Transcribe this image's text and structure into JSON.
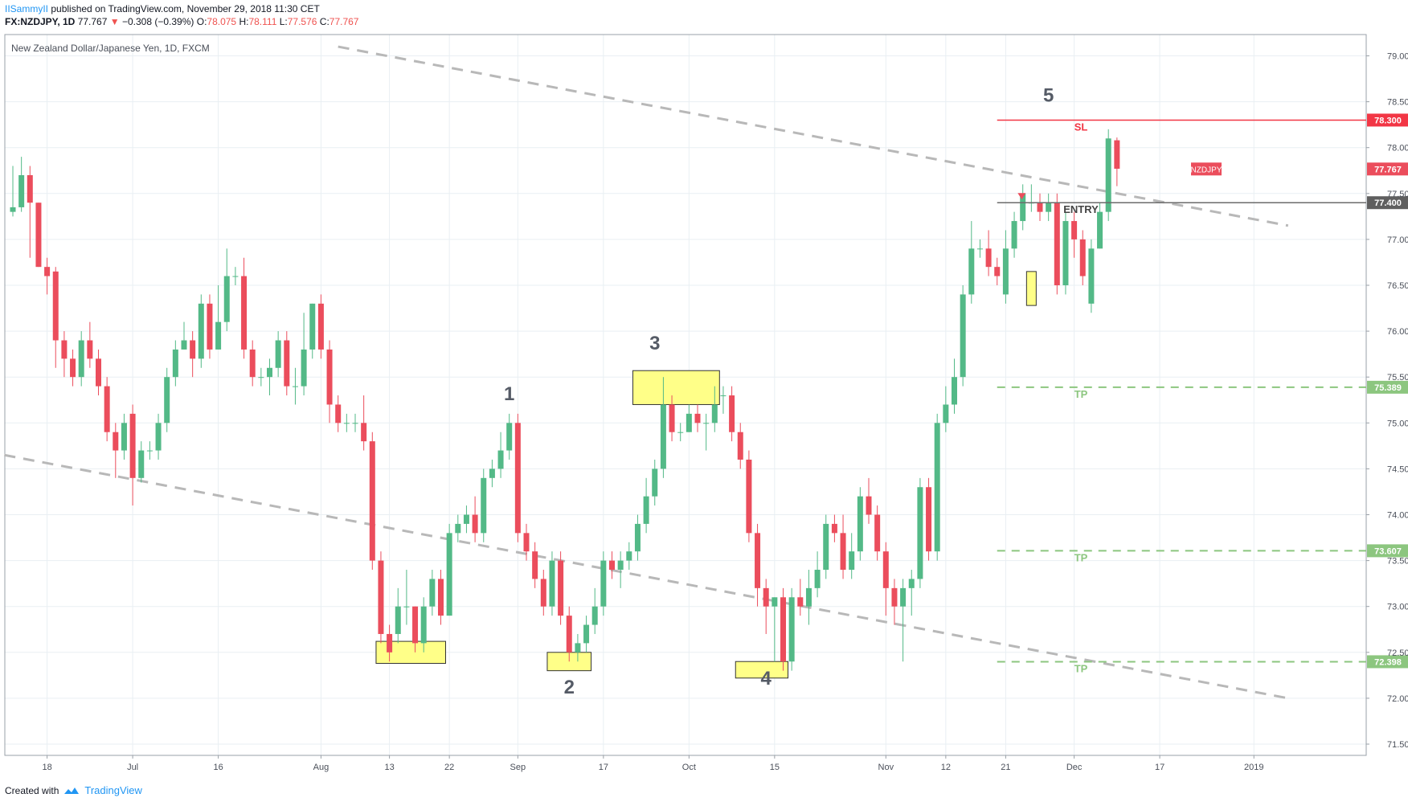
{
  "header": {
    "user": "IISammyII",
    "published": "published on TradingView.com, November 29, 2018 11:30 CET",
    "symbol": "FX:NZDJPY, 1D",
    "last": "77.767",
    "change": "−0.308 (−0.39%)",
    "o_label": "O:",
    "open": "78.075",
    "h_label": "H:",
    "high": "78.111",
    "l_label": "L:",
    "low": "77.576",
    "c_label": "C:",
    "close": "77.767"
  },
  "footer": {
    "created": "Created with",
    "brand": "TradingView"
  },
  "colors": {
    "up": "#53b987",
    "down": "#eb4d5c",
    "grid": "#e9eff3",
    "sl": "#f23645",
    "entry": "#6b6b6b",
    "tp": "#8cc67f",
    "highlight": "#ffff88",
    "trend": "#b8b8b8"
  },
  "chart_data": {
    "type": "candlestick",
    "title": "New Zealand Dollar/Japanese Yen, 1D, FXCM",
    "ylim": [
      71.2,
      79.1
    ],
    "y_ticks": [
      "71.500",
      "72.000",
      "72.500",
      "73.000",
      "73.500",
      "74.000",
      "74.500",
      "75.000",
      "75.500",
      "76.000",
      "76.500",
      "77.000",
      "77.500",
      "78.000",
      "78.500",
      "79.000"
    ],
    "x_ticks": [
      {
        "label": "18",
        "i": 4
      },
      {
        "label": "Jul",
        "i": 14
      },
      {
        "label": "16",
        "i": 24
      },
      {
        "label": "Aug",
        "i": 36
      },
      {
        "label": "13",
        "i": 44
      },
      {
        "label": "22",
        "i": 51
      },
      {
        "label": "Sep",
        "i": 59
      },
      {
        "label": "17",
        "i": 69
      },
      {
        "label": "Oct",
        "i": 79
      },
      {
        "label": "15",
        "i": 89
      },
      {
        "label": "Nov",
        "i": 102
      },
      {
        "label": "12",
        "i": 109
      },
      {
        "label": "21",
        "i": 116
      },
      {
        "label": "Dec",
        "i": 124
      },
      {
        "label": "17",
        "i": 134
      },
      {
        "label": "2019",
        "i": 145
      }
    ],
    "candles": [
      [
        77.3,
        77.35,
        77.8,
        77.25
      ],
      [
        77.35,
        77.7,
        77.9,
        77.3
      ],
      [
        77.7,
        77.4,
        77.8,
        76.8
      ],
      [
        77.4,
        76.7,
        77.4,
        76.7
      ],
      [
        76.7,
        76.6,
        76.8,
        76.4
      ],
      [
        76.65,
        75.9,
        76.7,
        75.6
      ],
      [
        75.9,
        75.7,
        76.0,
        75.5
      ],
      [
        75.7,
        75.5,
        75.8,
        75.4
      ],
      [
        75.5,
        75.9,
        76.0,
        75.4
      ],
      [
        75.9,
        75.7,
        76.1,
        75.6
      ],
      [
        75.7,
        75.4,
        75.8,
        75.3
      ],
      [
        75.4,
        74.9,
        75.5,
        74.8
      ],
      [
        74.9,
        74.7,
        75.0,
        74.4
      ],
      [
        74.7,
        75.0,
        75.1,
        74.6
      ],
      [
        75.1,
        74.4,
        75.2,
        74.1
      ],
      [
        74.4,
        74.7,
        74.8,
        74.35
      ],
      [
        74.7,
        74.7,
        74.8,
        74.6
      ],
      [
        74.7,
        75.0,
        75.1,
        74.6
      ],
      [
        75.0,
        75.5,
        75.6,
        74.9
      ],
      [
        75.5,
        75.8,
        75.9,
        75.4
      ],
      [
        75.8,
        75.9,
        76.1,
        75.8
      ],
      [
        75.9,
        75.7,
        76.0,
        75.5
      ],
      [
        75.7,
        76.3,
        76.4,
        75.6
      ],
      [
        76.3,
        75.8,
        76.4,
        75.7
      ],
      [
        75.8,
        76.1,
        76.5,
        75.8
      ],
      [
        76.1,
        76.6,
        76.9,
        76.0
      ],
      [
        76.6,
        76.6,
        76.7,
        76.5
      ],
      [
        76.6,
        75.8,
        76.8,
        75.7
      ],
      [
        75.8,
        75.5,
        75.9,
        75.4
      ],
      [
        75.5,
        75.5,
        75.6,
        75.4
      ],
      [
        75.5,
        75.6,
        75.7,
        75.3
      ],
      [
        75.6,
        75.9,
        76.0,
        75.5
      ],
      [
        75.9,
        75.4,
        76.0,
        75.3
      ],
      [
        75.4,
        75.4,
        75.6,
        75.2
      ],
      [
        75.4,
        75.8,
        76.2,
        75.3
      ],
      [
        75.8,
        76.3,
        76.3,
        75.7
      ],
      [
        76.3,
        75.8,
        76.4,
        75.7
      ],
      [
        75.8,
        75.2,
        75.9,
        75.0
      ],
      [
        75.2,
        75.0,
        75.3,
        74.9
      ],
      [
        75.0,
        75.0,
        75.1,
        74.9
      ],
      [
        75.0,
        75.0,
        75.1,
        74.9
      ],
      [
        75.0,
        74.8,
        75.3,
        74.7
      ],
      [
        74.8,
        73.5,
        74.9,
        73.4
      ],
      [
        73.5,
        72.7,
        73.6,
        72.6
      ],
      [
        72.7,
        72.5,
        72.8,
        72.4
      ],
      [
        72.7,
        73.0,
        73.2,
        72.6
      ],
      [
        73.0,
        73.0,
        73.4,
        72.8
      ],
      [
        73.0,
        72.6,
        73.0,
        72.5
      ],
      [
        72.6,
        73.0,
        73.1,
        72.5
      ],
      [
        73.0,
        73.3,
        73.4,
        72.9
      ],
      [
        73.3,
        72.9,
        73.4,
        72.8
      ],
      [
        72.9,
        73.8,
        73.9,
        72.9
      ],
      [
        73.8,
        73.9,
        74.0,
        73.7
      ],
      [
        73.9,
        74.0,
        74.1,
        73.8
      ],
      [
        74.0,
        73.8,
        74.2,
        73.7
      ],
      [
        73.8,
        74.4,
        74.5,
        73.7
      ],
      [
        74.4,
        74.5,
        74.6,
        74.3
      ],
      [
        74.5,
        74.7,
        74.9,
        74.4
      ],
      [
        74.7,
        75.0,
        75.1,
        74.6
      ],
      [
        75.0,
        73.8,
        75.1,
        73.7
      ],
      [
        73.8,
        73.6,
        73.9,
        73.5
      ],
      [
        73.6,
        73.3,
        73.7,
        73.2
      ],
      [
        73.3,
        73.0,
        73.4,
        72.9
      ],
      [
        73.0,
        73.5,
        73.6,
        72.9
      ],
      [
        73.5,
        72.9,
        73.6,
        72.8
      ],
      [
        72.9,
        72.5,
        73.0,
        72.4
      ],
      [
        72.5,
        72.6,
        72.7,
        72.4
      ],
      [
        72.6,
        72.8,
        72.9,
        72.5
      ],
      [
        72.8,
        73.0,
        73.2,
        72.7
      ],
      [
        73.0,
        73.5,
        73.6,
        72.9
      ],
      [
        73.5,
        73.4,
        73.6,
        73.3
      ],
      [
        73.4,
        73.5,
        73.6,
        73.2
      ],
      [
        73.5,
        73.6,
        73.7,
        73.4
      ],
      [
        73.6,
        73.9,
        74.0,
        73.5
      ],
      [
        73.9,
        74.2,
        74.4,
        73.8
      ],
      [
        74.2,
        74.5,
        74.6,
        74.1
      ],
      [
        74.5,
        75.2,
        75.5,
        74.4
      ],
      [
        75.2,
        74.9,
        75.3,
        74.8
      ],
      [
        74.9,
        74.9,
        75.0,
        74.8
      ],
      [
        74.9,
        75.1,
        75.2,
        74.9
      ],
      [
        75.1,
        75.0,
        75.2,
        74.9
      ],
      [
        75.0,
        75.0,
        75.1,
        74.7
      ],
      [
        75.0,
        75.2,
        75.4,
        74.9
      ],
      [
        75.3,
        75.3,
        75.4,
        75.1
      ],
      [
        75.3,
        74.9,
        75.4,
        74.8
      ],
      [
        74.9,
        74.6,
        75.0,
        74.5
      ],
      [
        74.6,
        73.8,
        74.7,
        73.7
      ],
      [
        73.8,
        73.2,
        73.9,
        73.0
      ],
      [
        73.2,
        73.0,
        73.3,
        72.7
      ],
      [
        73.0,
        73.1,
        73.1,
        72.4
      ],
      [
        73.1,
        72.4,
        73.2,
        72.3
      ],
      [
        72.4,
        73.1,
        73.2,
        72.3
      ],
      [
        73.1,
        73.0,
        73.3,
        72.9
      ],
      [
        73.0,
        73.2,
        73.4,
        72.8
      ],
      [
        73.2,
        73.4,
        73.6,
        73.1
      ],
      [
        73.4,
        73.9,
        74.0,
        73.3
      ],
      [
        73.9,
        73.8,
        74.0,
        73.7
      ],
      [
        73.8,
        73.4,
        74.0,
        73.3
      ],
      [
        73.4,
        73.6,
        73.8,
        73.3
      ],
      [
        73.6,
        74.2,
        74.3,
        73.5
      ],
      [
        74.2,
        74.0,
        74.4,
        73.9
      ],
      [
        74.0,
        73.6,
        74.1,
        73.5
      ],
      [
        73.6,
        73.2,
        73.7,
        72.9
      ],
      [
        73.2,
        73.0,
        73.3,
        72.8
      ],
      [
        73.0,
        73.2,
        73.3,
        72.4
      ],
      [
        73.2,
        73.3,
        73.4,
        72.9
      ],
      [
        73.3,
        74.3,
        74.4,
        73.2
      ],
      [
        74.3,
        73.6,
        74.4,
        73.5
      ],
      [
        73.6,
        75.0,
        75.1,
        73.5
      ],
      [
        75.0,
        75.2,
        75.4,
        74.9
      ],
      [
        75.2,
        75.5,
        75.7,
        75.1
      ],
      [
        75.5,
        76.4,
        76.5,
        75.4
      ],
      [
        76.4,
        76.9,
        77.2,
        76.3
      ],
      [
        76.9,
        76.9,
        77.0,
        76.8
      ],
      [
        76.9,
        76.7,
        77.1,
        76.6
      ],
      [
        76.7,
        76.6,
        76.8,
        76.5
      ],
      [
        76.4,
        76.9,
        77.1,
        76.3
      ],
      [
        76.9,
        77.2,
        77.3,
        76.8
      ],
      [
        77.2,
        77.5,
        77.6,
        77.1
      ],
      [
        77.4,
        77.4,
        77.6,
        77.3
      ],
      [
        77.4,
        77.3,
        77.5,
        77.2
      ],
      [
        77.3,
        77.4,
        77.5,
        77.2
      ],
      [
        77.4,
        76.5,
        77.5,
        76.4
      ],
      [
        76.5,
        77.2,
        77.3,
        76.4
      ],
      [
        77.2,
        77.0,
        77.3,
        76.8
      ],
      [
        77.0,
        76.6,
        77.1,
        76.5
      ],
      [
        76.3,
        76.9,
        77.0,
        76.2
      ],
      [
        76.9,
        77.3,
        77.4,
        76.9
      ],
      [
        77.3,
        78.1,
        78.2,
        77.2
      ],
      [
        78.08,
        77.77,
        78.11,
        77.58
      ]
    ],
    "series": [
      {
        "name": "SL",
        "value": 78.3,
        "label": "SL",
        "tag": "78.300"
      },
      {
        "name": "ENTRY",
        "value": 77.4,
        "label": "ENTRY",
        "tag": "77.400"
      },
      {
        "name": "TP",
        "value": 75.389,
        "label": "TP",
        "tag": "75.389"
      },
      {
        "name": "TP",
        "value": 73.607,
        "label": "TP",
        "tag": "73.607"
      },
      {
        "name": "TP",
        "value": 72.398,
        "label": "TP",
        "tag": "72.398"
      }
    ],
    "last_price": {
      "label": "NZDJPY",
      "value": 77.767,
      "tag": "77.767"
    },
    "wave_labels": [
      {
        "text": "1",
        "i": 58,
        "y": 75.25
      },
      {
        "text": "2",
        "i": 65,
        "y": 72.05
      },
      {
        "text": "3",
        "i": 75,
        "y": 75.8
      },
      {
        "text": "4",
        "i": 88,
        "y": 72.15
      },
      {
        "text": "5",
        "i": 121,
        "y": 78.5
      }
    ],
    "highlights": [
      {
        "i0": 43,
        "i1": 50,
        "y0": 72.38,
        "y1": 72.62
      },
      {
        "i0": 63,
        "i1": 67,
        "y0": 72.3,
        "y1": 72.5
      },
      {
        "i0": 73,
        "i1": 82,
        "y0": 75.2,
        "y1": 75.57
      },
      {
        "i0": 85,
        "i1": 90,
        "y0": 72.22,
        "y1": 72.4
      },
      {
        "i0": 119,
        "i1": 119,
        "y0": 76.28,
        "y1": 76.65
      }
    ],
    "trendlines": [
      {
        "x0": -1,
        "y0": 74.65,
        "x1": 149,
        "y1": 72.0
      },
      {
        "x0": 38,
        "y0": 79.1,
        "x1": 149,
        "y1": 77.15
      }
    ]
  }
}
